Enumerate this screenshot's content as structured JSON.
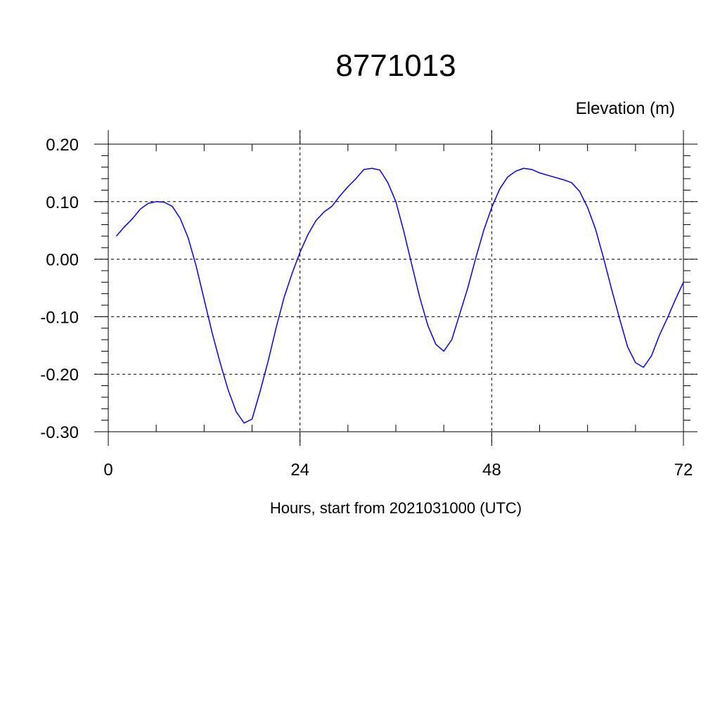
{
  "chart_data": {
    "type": "line",
    "title": "8771013",
    "ylabel": "Elevation (m)",
    "xlabel": "Hours, start from 2021031000 (UTC)",
    "xlim": [
      0,
      72
    ],
    "ylim": [
      -0.3,
      0.2
    ],
    "x_ticks": [
      0,
      24,
      48,
      72
    ],
    "x_tick_labels": [
      "0",
      "24",
      "48",
      "72"
    ],
    "y_ticks": [
      -0.3,
      -0.2,
      -0.1,
      0.0,
      0.1,
      0.2
    ],
    "y_tick_labels": [
      "-0.30",
      "-0.20",
      "-0.10",
      "0.00",
      "0.10",
      "0.20"
    ],
    "grid": true,
    "series": [
      {
        "color": "#0000ff",
        "x": [
          1,
          2,
          3,
          4,
          5,
          6,
          7,
          8,
          9,
          10,
          11,
          12,
          13,
          14,
          15,
          16,
          17,
          18,
          19,
          20,
          21,
          22,
          23,
          24,
          25,
          26,
          27,
          28,
          29,
          30,
          31,
          32,
          33,
          34,
          35,
          36,
          37,
          38,
          39,
          40,
          41,
          42,
          43,
          44,
          45,
          46,
          47,
          48,
          49,
          50,
          51,
          52,
          53,
          54,
          55,
          56,
          57,
          58,
          59,
          60,
          61,
          62,
          63,
          64,
          65,
          66,
          67,
          68,
          69,
          70,
          71,
          72
        ],
        "y": [
          0.04,
          0.056,
          0.07,
          0.087,
          0.097,
          0.1,
          0.099,
          0.092,
          0.071,
          0.037,
          -0.012,
          -0.07,
          -0.128,
          -0.18,
          -0.227,
          -0.265,
          -0.285,
          -0.278,
          -0.23,
          -0.178,
          -0.12,
          -0.067,
          -0.025,
          0.012,
          0.043,
          0.067,
          0.082,
          0.092,
          0.11,
          0.126,
          0.14,
          0.156,
          0.158,
          0.155,
          0.133,
          0.1,
          0.048,
          -0.01,
          -0.067,
          -0.115,
          -0.148,
          -0.16,
          -0.14,
          -0.095,
          -0.05,
          0.002,
          0.05,
          0.09,
          0.122,
          0.143,
          0.153,
          0.158,
          0.156,
          0.15,
          0.146,
          0.142,
          0.138,
          0.133,
          0.118,
          0.09,
          0.052,
          0.002,
          -0.052,
          -0.103,
          -0.152,
          -0.18,
          -0.188,
          -0.168,
          -0.132,
          -0.102,
          -0.07,
          -0.04
        ]
      }
    ]
  }
}
